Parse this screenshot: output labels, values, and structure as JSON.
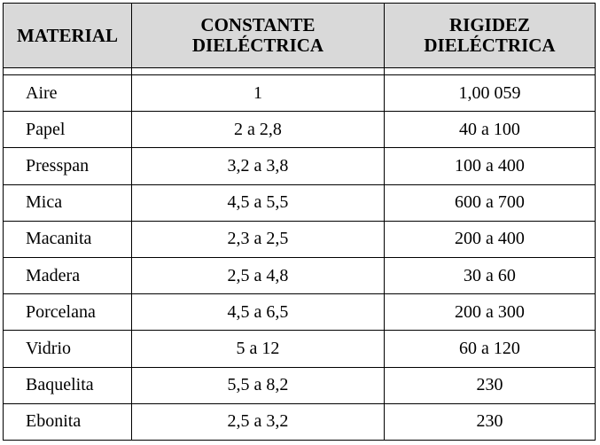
{
  "headers": {
    "material": "MATERIAL",
    "constante_line1": "CONSTANTE",
    "constante_line2": "DIELÉCTRICA",
    "rigidez_line1": "RIGIDEZ",
    "rigidez_line2": "DIELÉCTRICA"
  },
  "rows": [
    {
      "material": "Aire",
      "constante": "1",
      "rigidez": "1,00 059"
    },
    {
      "material": "Papel",
      "constante": "2 a 2,8",
      "rigidez": "40 a 100"
    },
    {
      "material": "Presspan",
      "constante": "3,2 a 3,8",
      "rigidez": "100 a 400"
    },
    {
      "material": "Mica",
      "constante": "4,5 a 5,5",
      "rigidez": "600 a 700"
    },
    {
      "material": "Macanita",
      "constante": "2,3 a 2,5",
      "rigidez": "200 a 400"
    },
    {
      "material": "Madera",
      "constante": "2,5 a 4,8",
      "rigidez": "30 a 60"
    },
    {
      "material": "Porcelana",
      "constante": "4,5 a 6,5",
      "rigidez": "200 a 300"
    },
    {
      "material": "Vidrio",
      "constante": "5 a 12",
      "rigidez": "60 a 120"
    },
    {
      "material": "Baquelita",
      "constante": "5,5 a 8,2",
      "rigidez": "230"
    },
    {
      "material": "Ebonita",
      "constante": "2,5 a 3,2",
      "rigidez": "230"
    }
  ]
}
